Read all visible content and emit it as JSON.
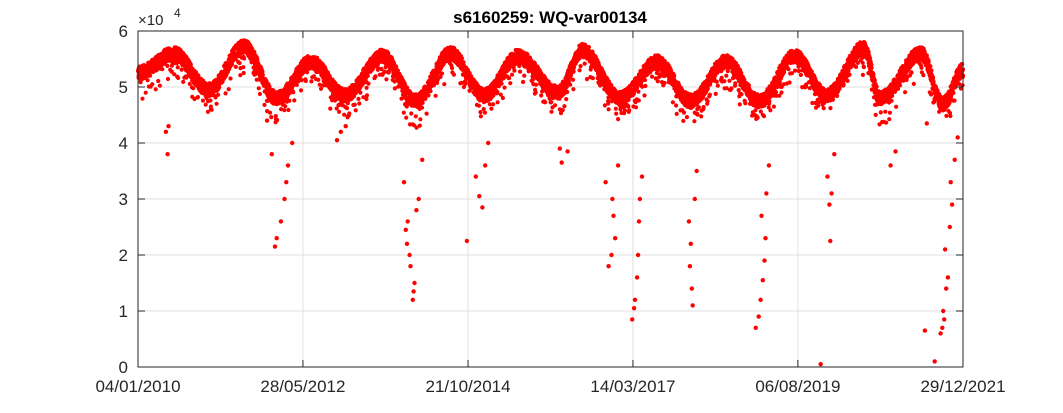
{
  "chart_data": {
    "type": "scatter",
    "title": "s6160259: WQ-var00134",
    "xlabel": "",
    "ylabel": "",
    "x_range": [
      "04/01/2010",
      "29/12/2021"
    ],
    "x_ticks": [
      "04/01/2010",
      "28/05/2012",
      "21/10/2014",
      "14/03/2017",
      "06/08/2019",
      "29/12/2021"
    ],
    "y_range": [
      0,
      60000
    ],
    "y_ticks": [
      "0",
      "1",
      "2",
      "3",
      "4",
      "5",
      "6"
    ],
    "y_exponent_label": "×10",
    "y_exponent_power": "4",
    "grid": true,
    "marker_color": "#ff0000",
    "seasonal_baseline": {
      "peaks": [
        {
          "date": "2010-01-04",
          "value": 52500
        },
        {
          "date": "2010-07-15",
          "value": 56000
        },
        {
          "date": "2011-07-20",
          "value": 57200
        },
        {
          "date": "2012-07-10",
          "value": 54500
        },
        {
          "date": "2013-07-25",
          "value": 55500
        },
        {
          "date": "2014-07-20",
          "value": 56000
        },
        {
          "date": "2015-07-15",
          "value": 55500
        },
        {
          "date": "2016-06-20",
          "value": 56500
        },
        {
          "date": "2017-07-20",
          "value": 54500
        },
        {
          "date": "2018-07-20",
          "value": 54500
        },
        {
          "date": "2019-07-20",
          "value": 55500
        },
        {
          "date": "2020-07-20",
          "value": 57000
        },
        {
          "date": "2021-05-20",
          "value": 56000
        }
      ],
      "troughs": [
        {
          "date": "2011-01-15",
          "value": 49500
        },
        {
          "date": "2012-01-10",
          "value": 48000
        },
        {
          "date": "2013-01-05",
          "value": 48500
        },
        {
          "date": "2014-01-15",
          "value": 47500
        },
        {
          "date": "2015-01-15",
          "value": 48500
        },
        {
          "date": "2016-02-10",
          "value": 49000
        },
        {
          "date": "2017-01-05",
          "value": 48000
        },
        {
          "date": "2018-01-15",
          "value": 47500
        },
        {
          "date": "2019-01-15",
          "value": 47500
        },
        {
          "date": "2020-01-05",
          "value": 48500
        },
        {
          "date": "2020-10-15",
          "value": 48000
        },
        {
          "date": "2021-09-15",
          "value": 47000
        },
        {
          "date": "2021-12-29",
          "value": 53000
        }
      ]
    },
    "low_outliers": [
      {
        "date": "2010-06-01",
        "value": 42000
      },
      {
        "date": "2010-06-10",
        "value": 38000
      },
      {
        "date": "2010-06-15",
        "value": 43000
      },
      {
        "date": "2012-01-01",
        "value": 21500
      },
      {
        "date": "2012-01-10",
        "value": 23000
      },
      {
        "date": "2012-02-01",
        "value": 26000
      },
      {
        "date": "2012-02-20",
        "value": 30000
      },
      {
        "date": "2012-03-01",
        "value": 33000
      },
      {
        "date": "2012-03-10",
        "value": 36000
      },
      {
        "date": "2011-12-15",
        "value": 38000
      },
      {
        "date": "2011-11-20",
        "value": 44000
      },
      {
        "date": "2012-04-01",
        "value": 40000
      },
      {
        "date": "2012-12-15",
        "value": 42000
      },
      {
        "date": "2012-11-25",
        "value": 40500
      },
      {
        "date": "2013-01-10",
        "value": 43000
      },
      {
        "date": "2014-01-01",
        "value": 12000
      },
      {
        "date": "2014-01-05",
        "value": 13500
      },
      {
        "date": "2014-01-10",
        "value": 15000
      },
      {
        "date": "2013-12-20",
        "value": 18000
      },
      {
        "date": "2013-12-15",
        "value": 20000
      },
      {
        "date": "2013-12-01",
        "value": 22000
      },
      {
        "date": "2013-11-25",
        "value": 24500
      },
      {
        "date": "2013-12-05",
        "value": 26000
      },
      {
        "date": "2014-01-20",
        "value": 28000
      },
      {
        "date": "2014-02-01",
        "value": 30000
      },
      {
        "date": "2013-11-15",
        "value": 33000
      },
      {
        "date": "2014-02-20",
        "value": 37000
      },
      {
        "date": "2014-10-15",
        "value": 22500
      },
      {
        "date": "2015-01-05",
        "value": 28500
      },
      {
        "date": "2014-12-20",
        "value": 30500
      },
      {
        "date": "2014-12-01",
        "value": 34000
      },
      {
        "date": "2015-01-20",
        "value": 36000
      },
      {
        "date": "2015-02-05",
        "value": 40000
      },
      {
        "date": "2016-03-01",
        "value": 36500
      },
      {
        "date": "2016-02-20",
        "value": 39000
      },
      {
        "date": "2016-04-01",
        "value": 38500
      },
      {
        "date": "2016-11-05",
        "value": 18000
      },
      {
        "date": "2016-11-20",
        "value": 20000
      },
      {
        "date": "2016-12-10",
        "value": 23000
      },
      {
        "date": "2016-12-01",
        "value": 27000
      },
      {
        "date": "2016-11-25",
        "value": 30000
      },
      {
        "date": "2016-10-20",
        "value": 33000
      },
      {
        "date": "2016-12-25",
        "value": 36000
      },
      {
        "date": "2017-03-10",
        "value": 8500
      },
      {
        "date": "2017-03-20",
        "value": 10500
      },
      {
        "date": "2017-03-25",
        "value": 12000
      },
      {
        "date": "2017-04-05",
        "value": 16000
      },
      {
        "date": "2017-04-10",
        "value": 20000
      },
      {
        "date": "2017-04-15",
        "value": 26000
      },
      {
        "date": "2017-04-20",
        "value": 30000
      },
      {
        "date": "2017-05-01",
        "value": 34000
      },
      {
        "date": "2018-01-25",
        "value": 11000
      },
      {
        "date": "2018-01-20",
        "value": 14000
      },
      {
        "date": "2018-01-10",
        "value": 18000
      },
      {
        "date": "2018-01-15",
        "value": 22000
      },
      {
        "date": "2018-01-05",
        "value": 26000
      },
      {
        "date": "2018-02-05",
        "value": 30000
      },
      {
        "date": "2018-02-15",
        "value": 35000
      },
      {
        "date": "2018-12-25",
        "value": 7000
      },
      {
        "date": "2019-01-10",
        "value": 9000
      },
      {
        "date": "2019-01-20",
        "value": 12000
      },
      {
        "date": "2019-02-01",
        "value": 15500
      },
      {
        "date": "2019-02-10",
        "value": 19000
      },
      {
        "date": "2019-02-15",
        "value": 23000
      },
      {
        "date": "2019-01-25",
        "value": 27000
      },
      {
        "date": "2019-02-20",
        "value": 31000
      },
      {
        "date": "2019-03-05",
        "value": 36000
      },
      {
        "date": "2019-12-05",
        "value": 500
      },
      {
        "date": "2020-01-25",
        "value": 22500
      },
      {
        "date": "2020-01-20",
        "value": 29000
      },
      {
        "date": "2020-02-01",
        "value": 31000
      },
      {
        "date": "2020-01-10",
        "value": 34000
      },
      {
        "date": "2020-02-15",
        "value": 38000
      },
      {
        "date": "2020-12-10",
        "value": 36000
      },
      {
        "date": "2021-01-05",
        "value": 38500
      },
      {
        "date": "2021-06-10",
        "value": 6500
      },
      {
        "date": "2021-08-01",
        "value": 1000
      },
      {
        "date": "2021-09-01",
        "value": 6000
      },
      {
        "date": "2021-09-10",
        "value": 7000
      },
      {
        "date": "2021-09-20",
        "value": 8500
      },
      {
        "date": "2021-09-15",
        "value": 10000
      },
      {
        "date": "2021-10-01",
        "value": 14000
      },
      {
        "date": "2021-10-10",
        "value": 16000
      },
      {
        "date": "2021-09-25",
        "value": 21000
      },
      {
        "date": "2021-10-20",
        "value": 25000
      },
      {
        "date": "2021-11-01",
        "value": 29000
      },
      {
        "date": "2021-10-25",
        "value": 33000
      },
      {
        "date": "2021-11-15",
        "value": 37000
      },
      {
        "date": "2021-12-01",
        "value": 41000
      },
      {
        "date": "2021-06-20",
        "value": 43500
      }
    ]
  }
}
